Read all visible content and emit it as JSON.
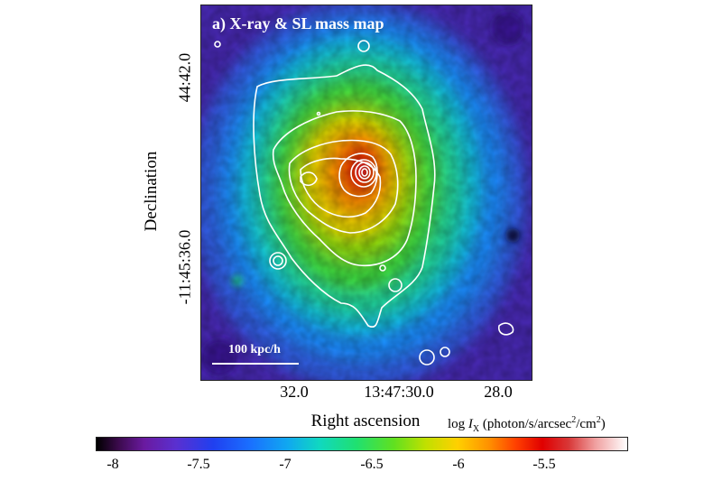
{
  "panel_title": "a) X-ray & SL mass map",
  "scalebar_label": "100 kpc/h",
  "x_axis": {
    "label": "Right ascension",
    "ticks": [
      "32.0",
      "13:47:30.0",
      "28.0"
    ]
  },
  "y_axis": {
    "label": "Declination",
    "ticks": [
      "44:42.0",
      "-11:45:36.0"
    ]
  },
  "colorbar": {
    "label_prefix": "log ",
    "label_symbol": "I",
    "label_sub": "X",
    "label_units_a": " (photon/s/arcsec",
    "label_sup1": "2",
    "label_units_b": "/cm",
    "label_sup2": "2",
    "label_units_c": ")",
    "ticks": [
      "-8",
      "-7.5",
      "-7",
      "-6.5",
      "-6",
      "-5.5"
    ]
  },
  "colors": {
    "contour": "#ffffff",
    "background_low": "#3a2aa8",
    "peak": "#e00000"
  }
}
